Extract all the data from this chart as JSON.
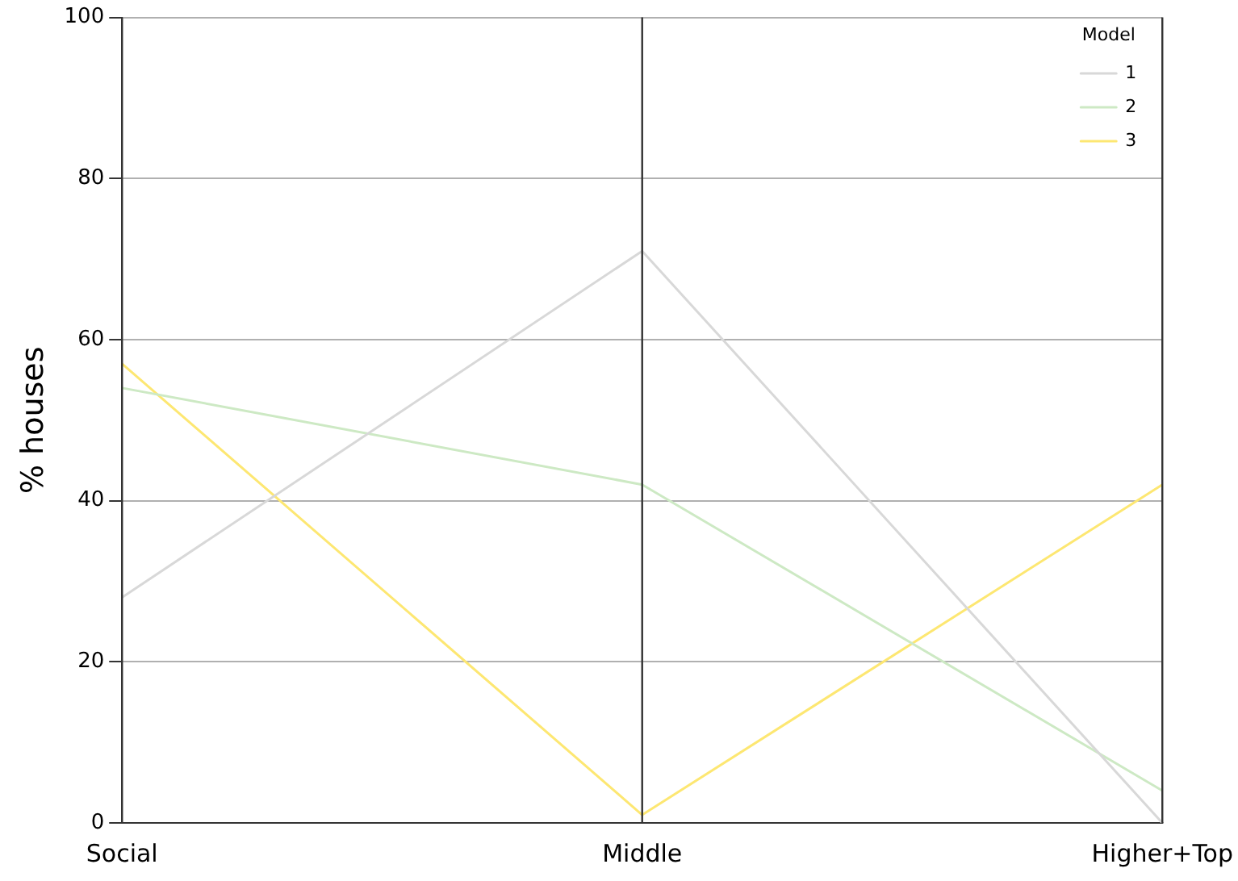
{
  "chart_data": {
    "type": "line",
    "ylabel": "% houses",
    "legend_title": "Model",
    "legend": "top right",
    "grid": "y",
    "ref_lines": [
      {
        "axis": "x",
        "value": "Social"
      },
      {
        "axis": "x",
        "value": "Middle"
      },
      {
        "axis": "x",
        "value": "Higher+Top"
      }
    ],
    "categories": [
      "Social",
      "Middle",
      "Higher+Top"
    ],
    "ylim": [
      0,
      100
    ],
    "yticks": [
      0,
      20,
      40,
      60,
      80,
      100
    ],
    "series": [
      {
        "name": "1",
        "color": "#d8d8d8",
        "values": [
          28,
          71,
          0
        ]
      },
      {
        "name": "2",
        "color": "#cde9c4",
        "values": [
          54,
          42,
          4
        ]
      },
      {
        "name": "3",
        "color": "#fde772",
        "values": [
          57,
          1,
          42
        ]
      }
    ]
  }
}
